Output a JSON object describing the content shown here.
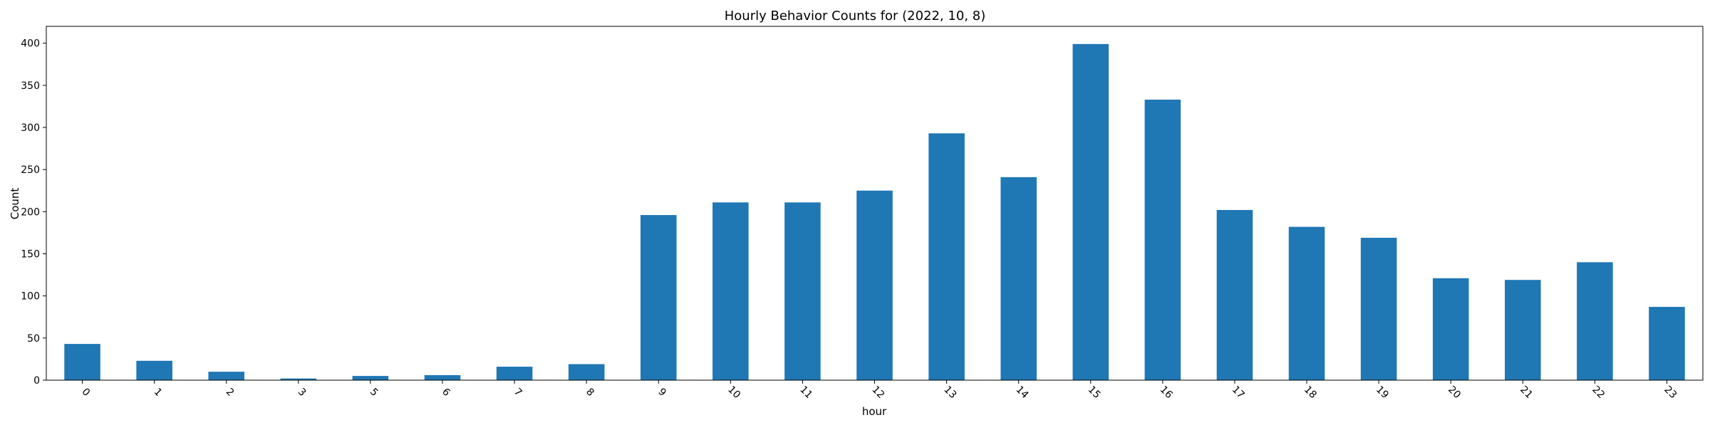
{
  "chart_data": {
    "type": "bar",
    "title": "Hourly Behavior Counts for (2022, 10, 8)",
    "xlabel": "hour",
    "ylabel": "Count",
    "categories": [
      "0",
      "1",
      "2",
      "3",
      "5",
      "6",
      "7",
      "8",
      "9",
      "10",
      "11",
      "12",
      "13",
      "14",
      "15",
      "16",
      "17",
      "18",
      "19",
      "20",
      "21",
      "22",
      "23"
    ],
    "values": [
      43,
      23,
      10,
      2,
      5,
      6,
      16,
      19,
      196,
      211,
      211,
      225,
      293,
      241,
      399,
      333,
      202,
      182,
      169,
      121,
      119,
      140,
      87
    ],
    "ylim": [
      0,
      420
    ],
    "yticks": [
      0,
      50,
      100,
      150,
      200,
      250,
      300,
      350,
      400
    ],
    "grid": false,
    "legend": "none",
    "bar_color": "#1f77b4",
    "tick_rotation_deg": -45
  }
}
